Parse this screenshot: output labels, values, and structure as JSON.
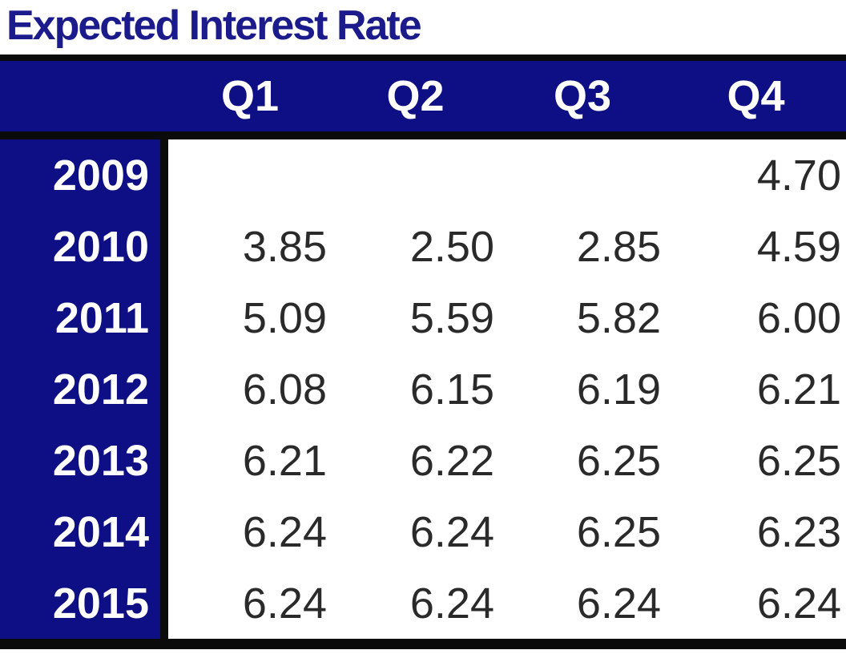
{
  "title": "Expected Interest Rate",
  "colors": {
    "navy_fill": "#0f0f85",
    "title_text": "#1b1b8c",
    "header_text": "#ffffff",
    "data_text": "#2a2a2a",
    "border": "#0b0b0b",
    "background": "#ffffff"
  },
  "chart_data": {
    "type": "table",
    "title": "Expected Interest Rate",
    "columns": [
      "Q1",
      "Q2",
      "Q3",
      "Q4"
    ],
    "row_header_label": "",
    "rows": [
      {
        "year": "2009",
        "values": [
          "",
          "",
          "",
          "4.70"
        ]
      },
      {
        "year": "2010",
        "values": [
          "3.85",
          "2.50",
          "2.85",
          "4.59"
        ]
      },
      {
        "year": "2011",
        "values": [
          "5.09",
          "5.59",
          "5.82",
          "6.00"
        ]
      },
      {
        "year": "2012",
        "values": [
          "6.08",
          "6.15",
          "6.19",
          "6.21"
        ]
      },
      {
        "year": "2013",
        "values": [
          "6.21",
          "6.22",
          "6.25",
          "6.25"
        ]
      },
      {
        "year": "2014",
        "values": [
          "6.24",
          "6.24",
          "6.25",
          "6.23"
        ]
      },
      {
        "year": "2015",
        "values": [
          "6.24",
          "6.24",
          "6.24",
          "6.24"
        ]
      }
    ],
    "layout": {
      "header_alignment": "center",
      "data_alignment": "right",
      "grid": "off",
      "style": "navy header row and year column, white data area, black rule borders"
    }
  }
}
